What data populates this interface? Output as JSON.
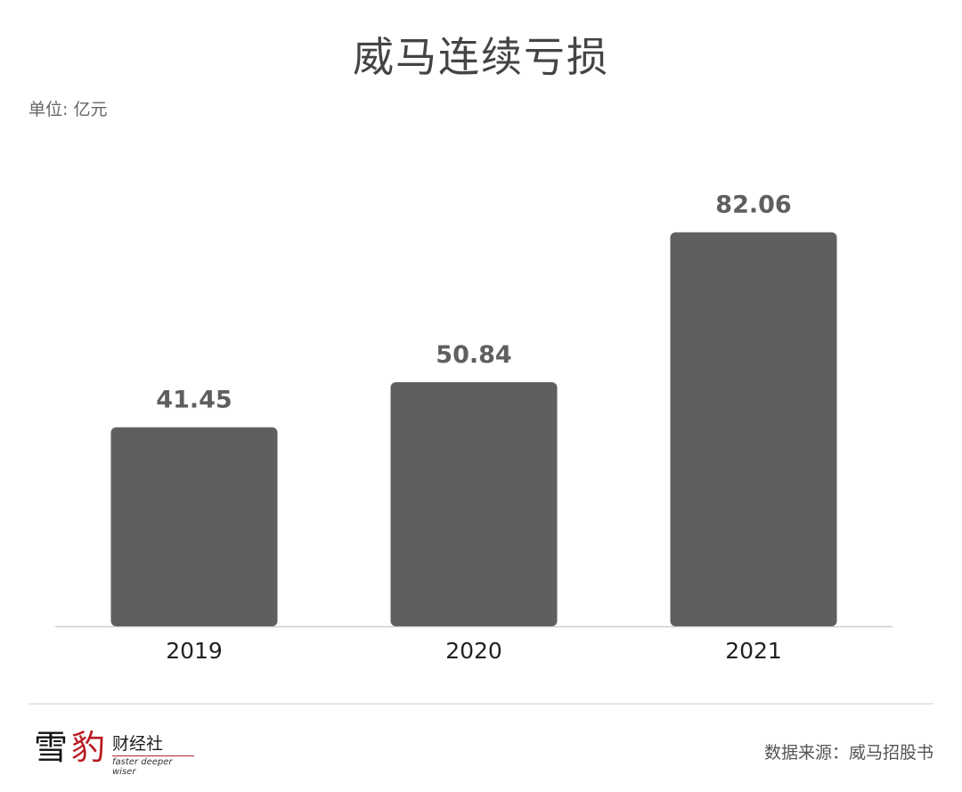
{
  "chart_data": {
    "type": "bar",
    "title": "威马连续亏损",
    "unit_label": "单位: 亿元",
    "categories": [
      "2019",
      "2020",
      "2021"
    ],
    "values": [
      41.45,
      50.84,
      82.06
    ],
    "data_labels": [
      "41.45",
      "50.84",
      "82.06"
    ],
    "ylim": [
      0,
      100
    ],
    "grid": false,
    "bar_color": "#5f5f5f",
    "label_color": "#5f5f5f"
  },
  "footer": {
    "source": "数据来源：威马招股书",
    "logo": {
      "char1": "雪",
      "char2": "豹",
      "name": "财经社",
      "tagline": "faster deeper wiser",
      "accent": "#b8191e"
    }
  }
}
